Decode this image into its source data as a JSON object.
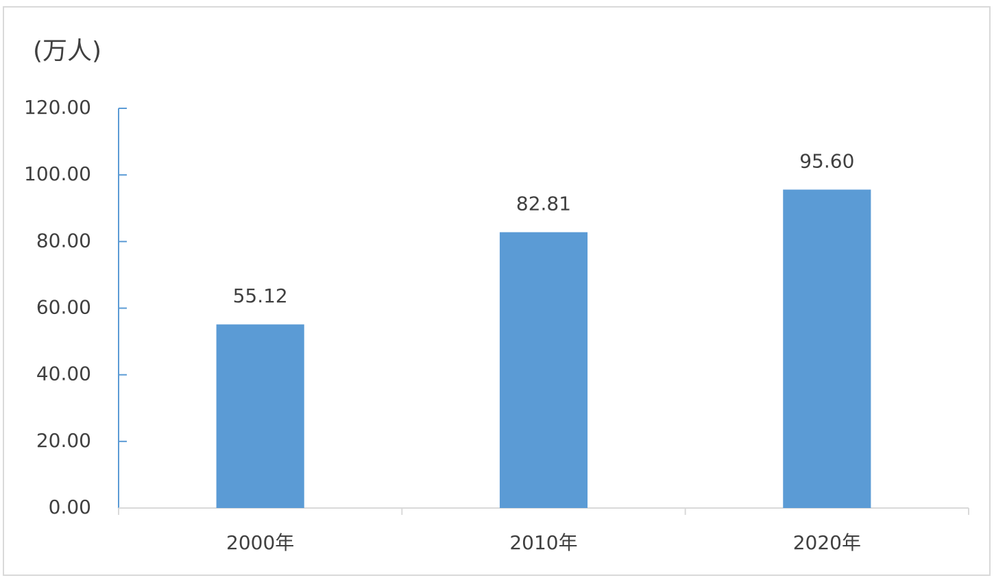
{
  "chart_data": {
    "type": "bar",
    "y_axis_label": "(万人)",
    "categories": [
      "2000年",
      "2010年",
      "2020年"
    ],
    "values": [
      55.12,
      82.81,
      95.6
    ],
    "value_labels": [
      "55.12",
      "82.81",
      "95.60"
    ],
    "color": "#5b9bd5",
    "ylim": [
      0,
      120
    ],
    "yticks": [
      {
        "value": 0,
        "label": "0.00"
      },
      {
        "value": 20,
        "label": "20.00"
      },
      {
        "value": 40,
        "label": "40.00"
      },
      {
        "value": 60,
        "label": "60.00"
      },
      {
        "value": 80,
        "label": "80.00"
      },
      {
        "value": 100,
        "label": "100.00"
      },
      {
        "value": 120,
        "label": "120.00"
      }
    ],
    "grid": false
  }
}
